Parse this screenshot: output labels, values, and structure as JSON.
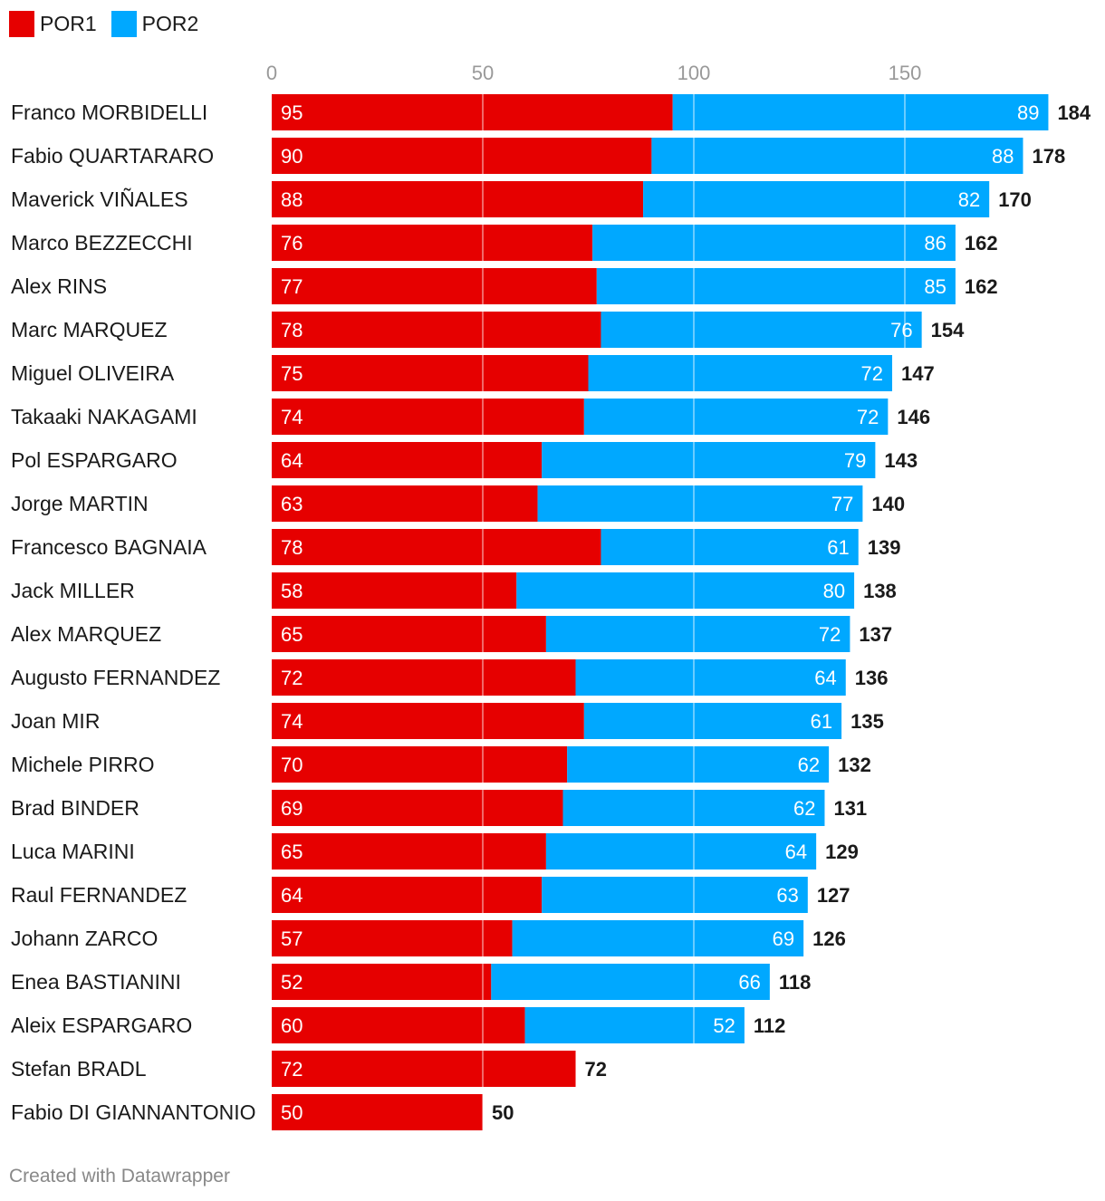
{
  "legend": [
    {
      "label": "POR1",
      "color": "#e60000"
    },
    {
      "label": "POR2",
      "color": "#00a8ff"
    }
  ],
  "footer": "Created with Datawrapper",
  "chart_data": {
    "type": "bar",
    "orientation": "horizontal",
    "stacked": true,
    "xlim": [
      0,
      184
    ],
    "x_ticks": [
      0,
      50,
      100,
      150
    ],
    "grid": true,
    "legend_position": "top-left",
    "categories": [
      "Franco MORBIDELLI",
      "Fabio QUARTARARO",
      "Maverick VIÑALES",
      "Marco BEZZECCHI",
      "Alex RINS",
      "Marc MARQUEZ",
      "Miguel OLIVEIRA",
      "Takaaki NAKAGAMI",
      "Pol ESPARGARO",
      "Jorge MARTIN",
      "Francesco BAGNAIA",
      "Jack MILLER",
      "Alex MARQUEZ",
      "Augusto FERNANDEZ",
      "Joan MIR",
      "Michele PIRRO",
      "Brad BINDER",
      "Luca MARINI",
      "Raul FERNANDEZ",
      "Johann ZARCO",
      "Enea BASTIANINI",
      "Aleix ESPARGARO",
      "Stefan BRADL",
      "Fabio DI GIANNANTONIO"
    ],
    "series": [
      {
        "name": "POR1",
        "color": "#e60000",
        "values": [
          95,
          90,
          88,
          76,
          77,
          78,
          75,
          74,
          64,
          63,
          78,
          58,
          65,
          72,
          74,
          70,
          69,
          65,
          64,
          57,
          52,
          60,
          72,
          50
        ]
      },
      {
        "name": "POR2",
        "color": "#00a8ff",
        "values": [
          89,
          88,
          82,
          86,
          85,
          76,
          72,
          72,
          79,
          77,
          61,
          80,
          72,
          64,
          61,
          62,
          62,
          64,
          63,
          69,
          66,
          52,
          null,
          null
        ]
      }
    ],
    "totals": [
      184,
      178,
      170,
      162,
      162,
      154,
      147,
      146,
      143,
      140,
      139,
      138,
      137,
      136,
      135,
      132,
      131,
      129,
      127,
      126,
      118,
      112,
      72,
      50
    ]
  }
}
